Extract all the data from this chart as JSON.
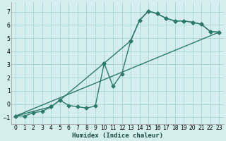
{
  "xlabel": "Humidex (Indice chaleur)",
  "bg_color": "#d4eeee",
  "grid_color": "#aad4d4",
  "line_color": "#2d7a6a",
  "xlim": [
    -0.5,
    23.5
  ],
  "ylim": [
    -1.5,
    7.7
  ],
  "xticks": [
    0,
    1,
    2,
    3,
    4,
    5,
    6,
    7,
    8,
    9,
    10,
    11,
    12,
    13,
    14,
    15,
    16,
    17,
    18,
    19,
    20,
    21,
    22,
    23
  ],
  "yticks": [
    -1,
    0,
    1,
    2,
    3,
    4,
    5,
    6,
    7
  ],
  "line1_x": [
    0,
    1,
    2,
    3,
    4,
    5,
    6,
    7,
    8,
    9,
    10,
    11,
    12,
    13,
    14,
    15,
    16,
    17,
    18,
    19,
    20,
    21,
    22,
    23
  ],
  "line1_y": [
    -0.9,
    -0.9,
    -0.65,
    -0.55,
    -0.2,
    0.3,
    -0.1,
    -0.2,
    -0.3,
    -0.15,
    3.1,
    1.35,
    2.3,
    4.8,
    6.35,
    7.05,
    6.85,
    6.5,
    6.3,
    6.3,
    6.2,
    6.05,
    5.5,
    5.45
  ],
  "line2_x": [
    0,
    4,
    5,
    10,
    13,
    14,
    15,
    16,
    17,
    18,
    19,
    20,
    21,
    22,
    23
  ],
  "line2_y": [
    -0.9,
    -0.2,
    0.3,
    3.1,
    4.8,
    6.35,
    7.05,
    6.85,
    6.5,
    6.3,
    6.3,
    6.2,
    6.05,
    5.5,
    5.45
  ],
  "line3_x": [
    0,
    23
  ],
  "line3_y": [
    -0.9,
    5.45
  ],
  "marker_size": 2.5,
  "line_width": 1.0,
  "label_fontsize": 6.5,
  "tick_fontsize": 5.5
}
